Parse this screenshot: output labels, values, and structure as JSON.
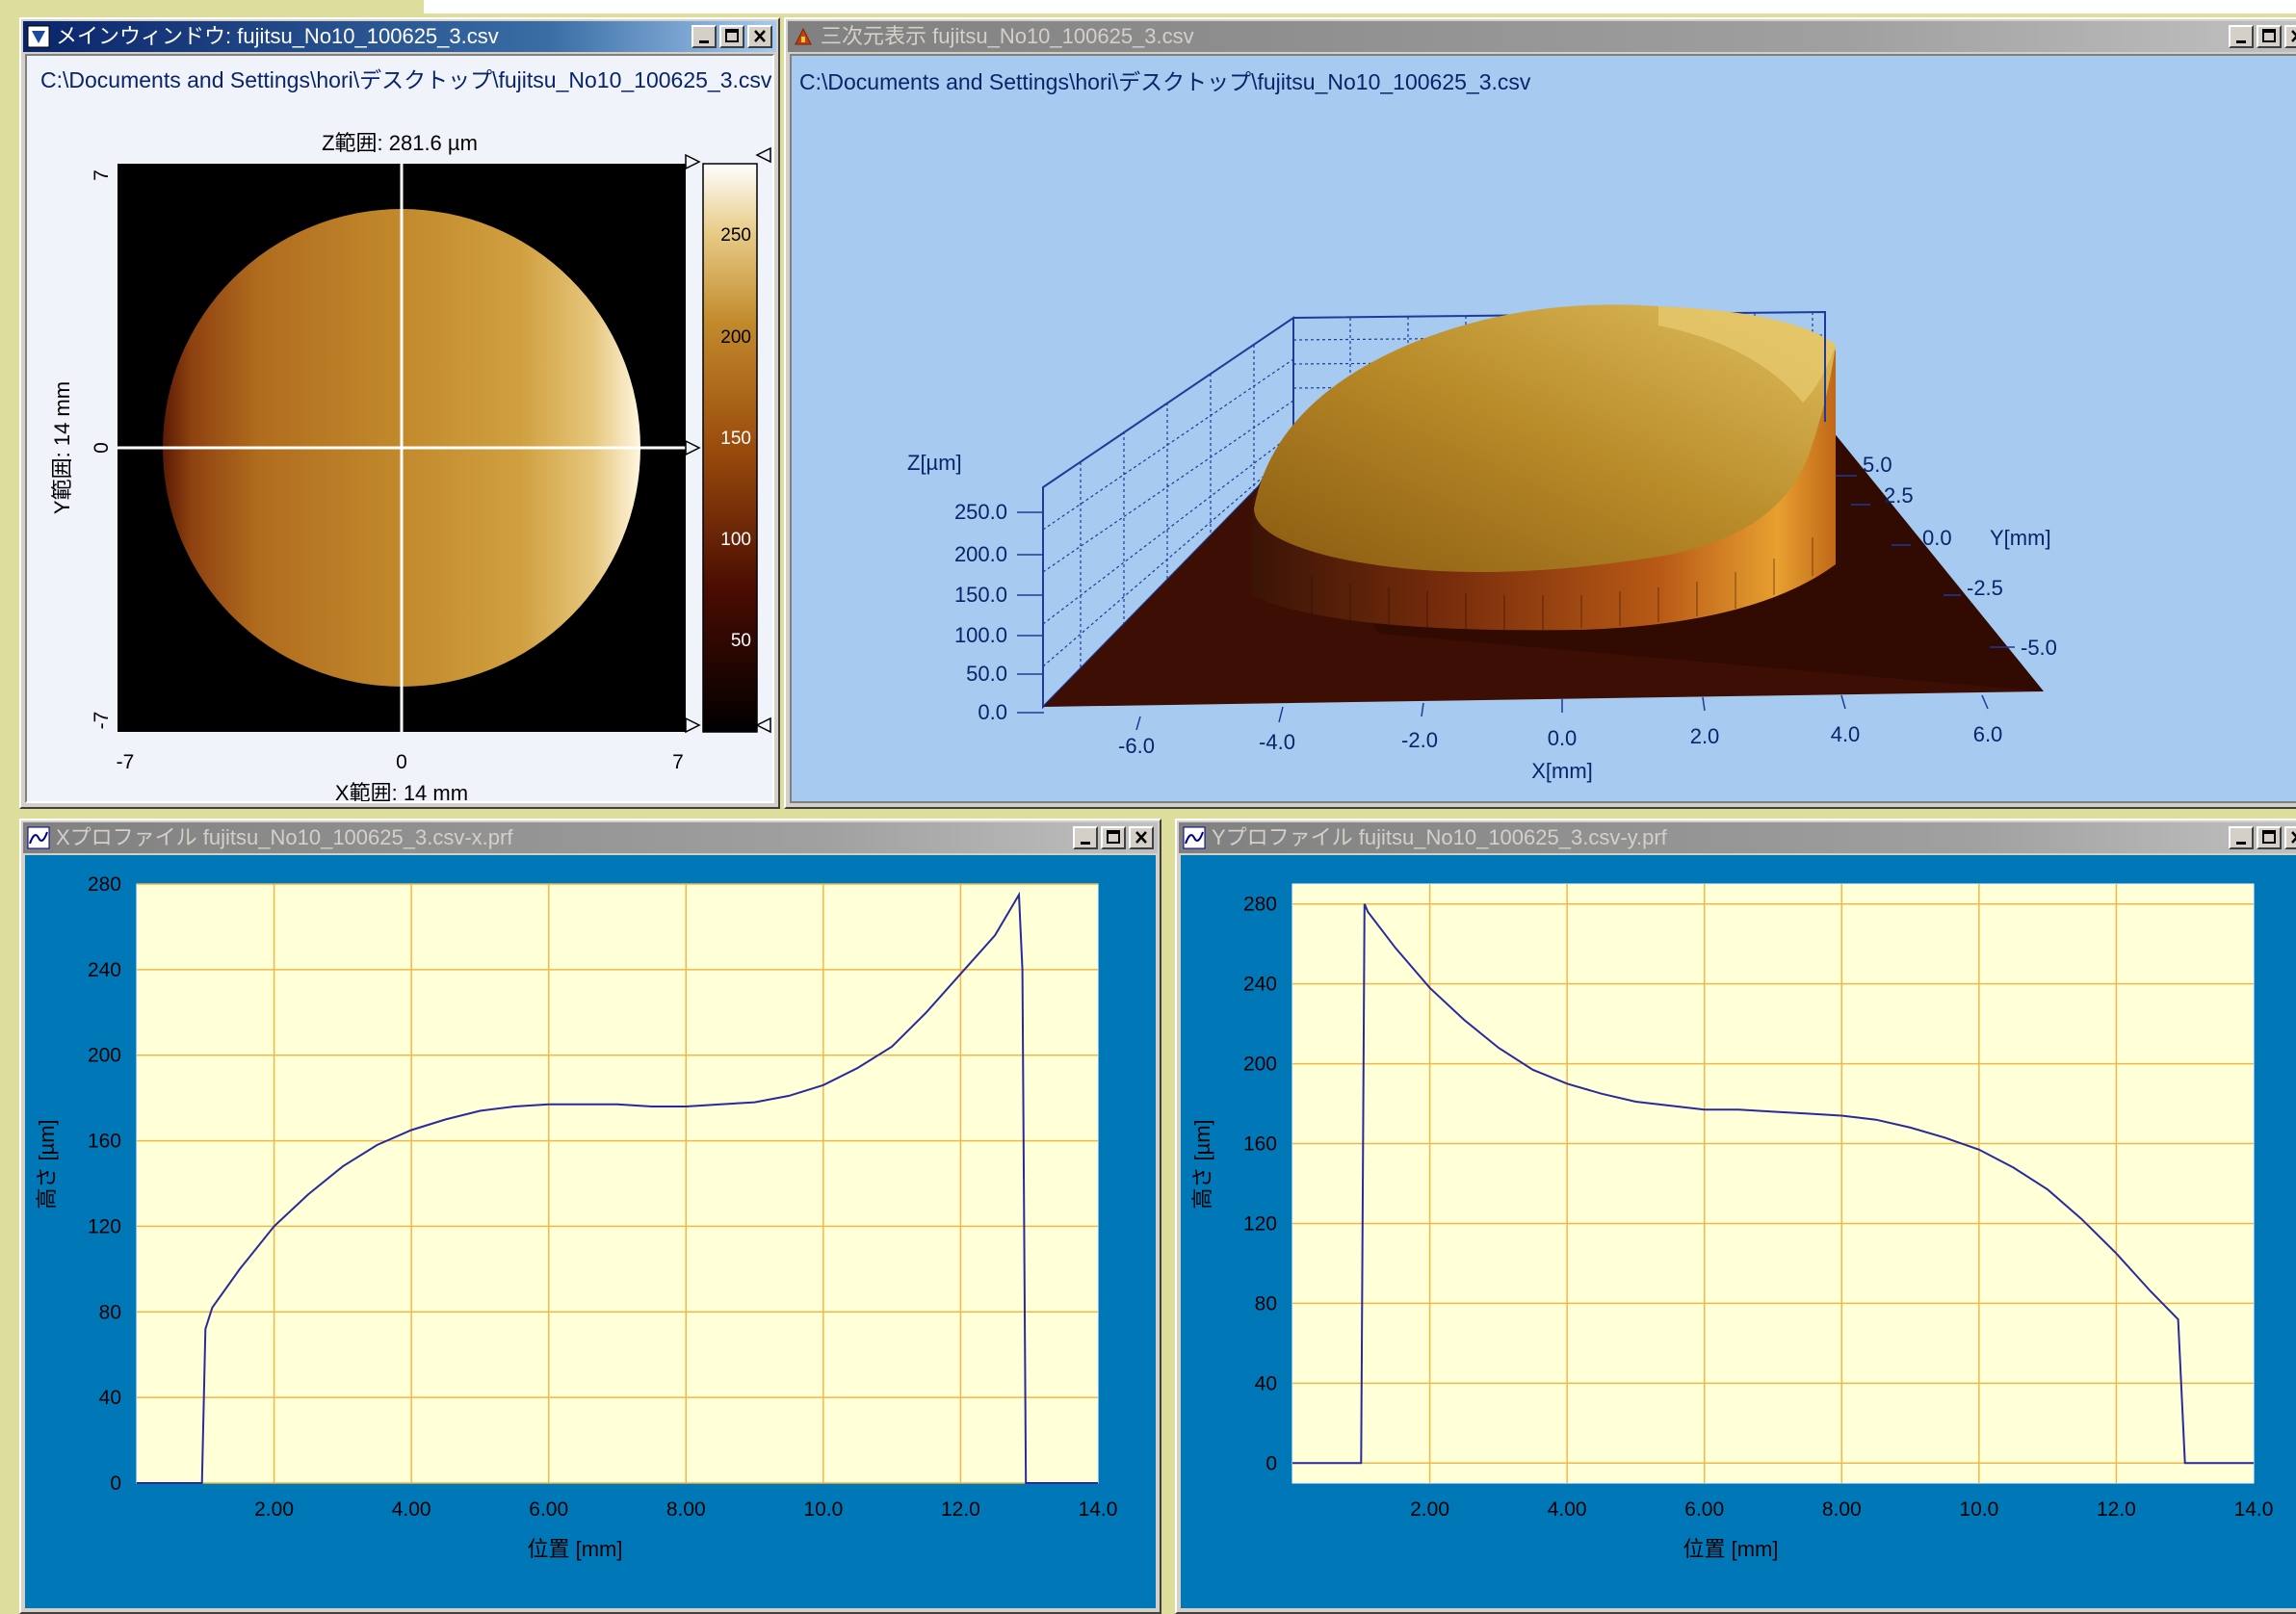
{
  "main_window": {
    "title": "メインウィンドウ: fujitsu_No10_100625_3.csv",
    "path": "C:\\Documents and Settings\\hori\\デスクトップ\\fujitsu_No10_100625_3.csv",
    "z_range": "Z範囲: 281.6 µm",
    "x_range": "X範囲: 14 mm",
    "y_range": "Y範囲: 14 mm",
    "x_ticks": [
      "-7",
      "0",
      "7"
    ],
    "y_ticks": [
      "7",
      "0",
      "-7"
    ],
    "colorbar_ticks": [
      "250",
      "200",
      "150",
      "100",
      "50"
    ]
  },
  "view3d_window": {
    "title": "三次元表示 fujitsu_No10_100625_3.csv",
    "path": "C:\\Documents and Settings\\hori\\デスクトップ\\fujitsu_No10_100625_3.csv",
    "z_label": "Z[µm]",
    "z_ticks": [
      "250.0",
      "200.0",
      "150.0",
      "100.0",
      "50.0",
      "0.0"
    ],
    "x_label": "X[mm]",
    "x_ticks": [
      "-6.0",
      "-4.0",
      "-2.0",
      "0.0",
      "2.0",
      "4.0",
      "6.0"
    ],
    "y_label": "Y[mm]",
    "y_ticks": [
      "5.0",
      "2.5",
      "0.0",
      "-2.5",
      "-5.0"
    ]
  },
  "xprofile_window": {
    "title": "Xプロファイル fujitsu_No10_100625_3.csv-x.prf"
  },
  "yprofile_window": {
    "title": "Yプロファイル fujitsu_No10_100625_3.csv-y.prf"
  },
  "colors": {
    "active_title": "#0a246a",
    "plot_bg": "#ffffd8",
    "panel_blue": "#0078b8",
    "grid": "#f0b848",
    "line": "#2a2a9a",
    "view3d_bg": "#a6caf0"
  },
  "chart_data": [
    {
      "type": "line",
      "name": "x-profile",
      "xlabel": "位置 [mm]",
      "ylabel": "高さ [µm]",
      "xlim": [
        0,
        14
      ],
      "ylim": [
        0,
        280
      ],
      "x_tick_labels": [
        "2.00",
        "4.00",
        "6.00",
        "8.00",
        "10.0",
        "12.0",
        "14.0"
      ],
      "y_tick_labels": [
        "0",
        "40",
        "80",
        "120",
        "160",
        "200",
        "240",
        "280"
      ],
      "x": [
        0,
        0.95,
        1.0,
        1.1,
        1.5,
        2.0,
        2.5,
        3.0,
        3.5,
        4.0,
        4.5,
        5.0,
        5.5,
        6.0,
        6.5,
        7.0,
        7.5,
        8.0,
        8.5,
        9.0,
        9.5,
        10.0,
        10.5,
        11.0,
        11.5,
        12.0,
        12.5,
        12.85,
        12.9,
        12.95,
        13.0,
        14.0
      ],
      "y": [
        0,
        0,
        72,
        82,
        100,
        120,
        135,
        148,
        158,
        165,
        170,
        174,
        176,
        177,
        177,
        177,
        176,
        176,
        177,
        178,
        181,
        186,
        194,
        204,
        220,
        238,
        256,
        275,
        240,
        0,
        0,
        0
      ]
    },
    {
      "type": "line",
      "name": "y-profile",
      "xlabel": "位置 [mm]",
      "ylabel": "高さ [µm]",
      "xlim": [
        0,
        14
      ],
      "ylim": [
        -10,
        290
      ],
      "x_tick_labels": [
        "2.00",
        "4.00",
        "6.00",
        "8.00",
        "10.0",
        "12.0",
        "14.0"
      ],
      "y_tick_labels": [
        "0",
        "40",
        "80",
        "120",
        "160",
        "200",
        "240",
        "280"
      ],
      "x": [
        0,
        1.0,
        1.05,
        1.1,
        1.5,
        2.0,
        2.5,
        3.0,
        3.5,
        4.0,
        4.5,
        5.0,
        5.5,
        6.0,
        6.5,
        7.0,
        7.5,
        8.0,
        8.5,
        9.0,
        9.5,
        10.0,
        10.5,
        11.0,
        11.5,
        12.0,
        12.5,
        12.9,
        13.0,
        13.05,
        14.0
      ],
      "y": [
        0,
        0,
        280,
        276,
        258,
        238,
        222,
        208,
        197,
        190,
        185,
        181,
        179,
        177,
        177,
        176,
        175,
        174,
        172,
        168,
        163,
        157,
        148,
        137,
        122,
        105,
        86,
        72,
        0,
        0,
        0
      ]
    }
  ]
}
